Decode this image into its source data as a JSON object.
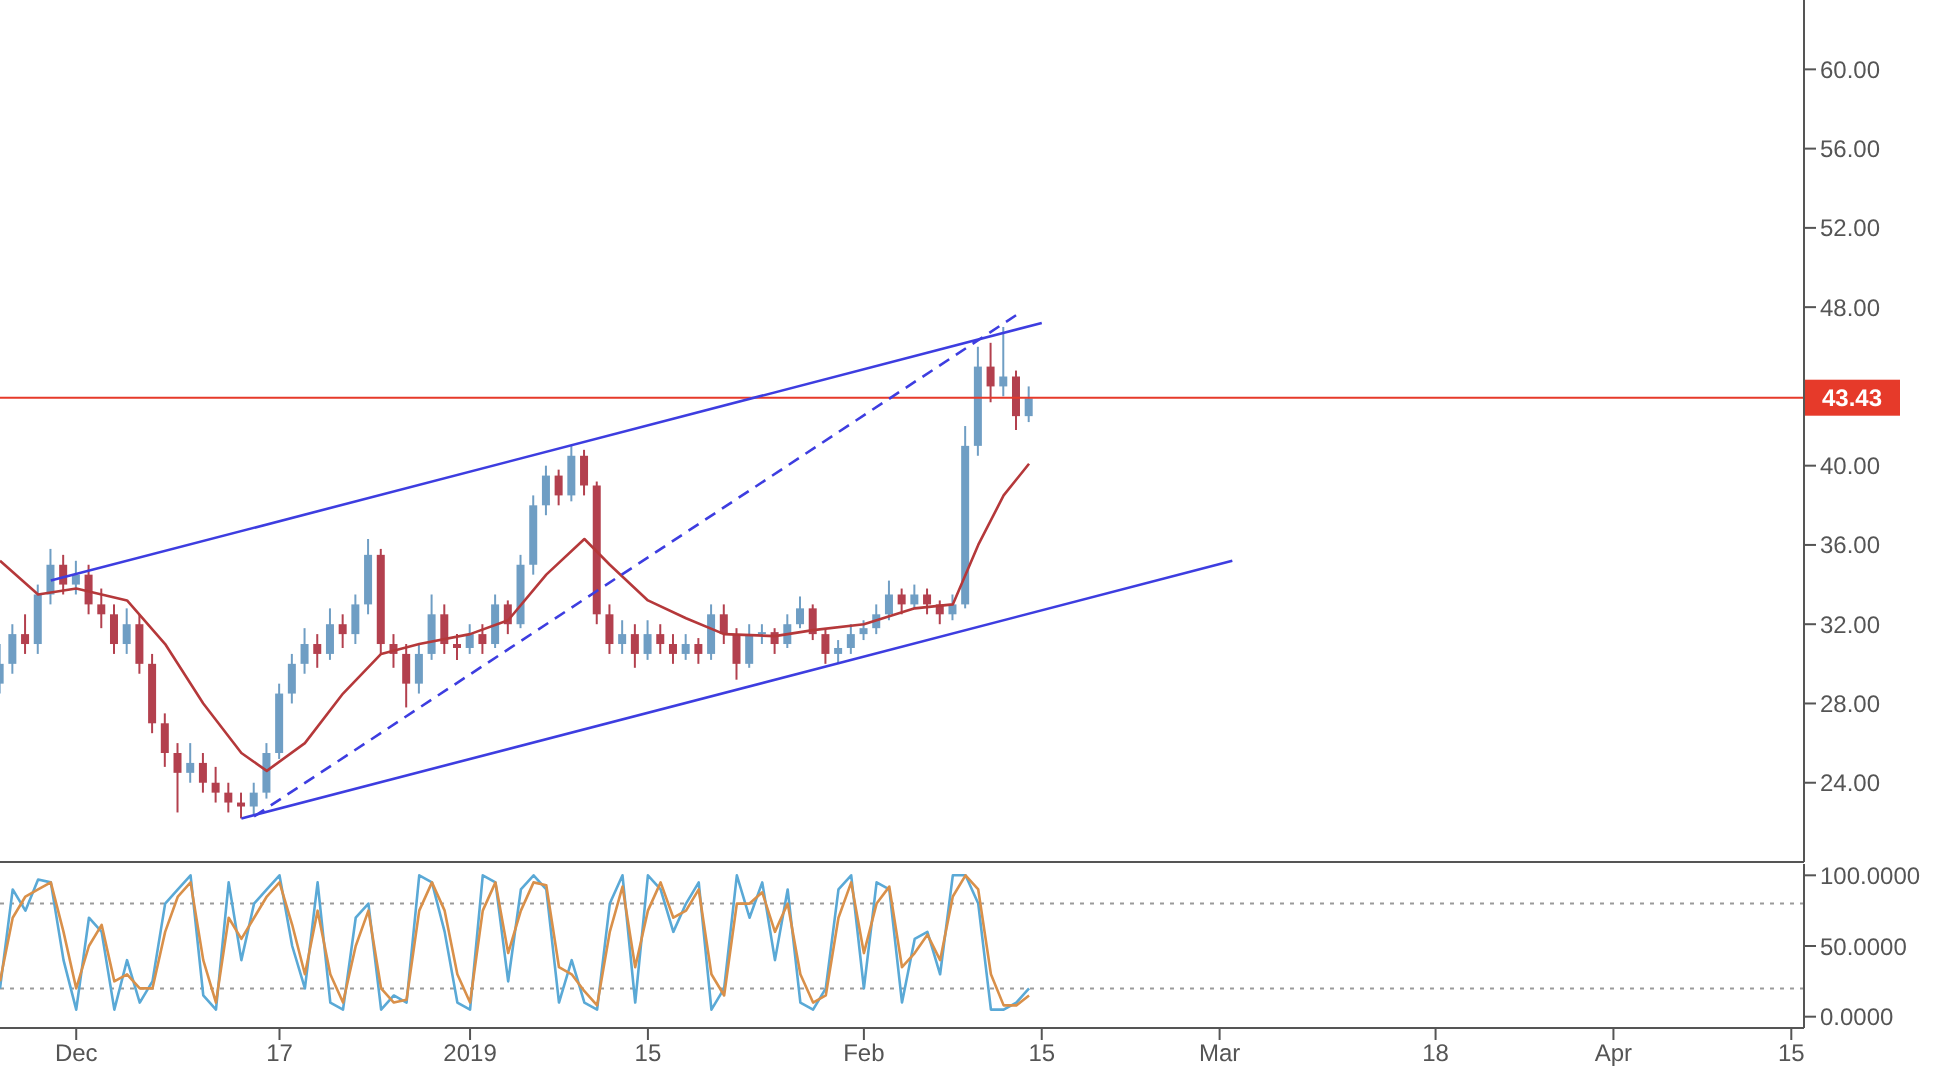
{
  "chart_data": [
    {
      "type": "candlestick",
      "tick_labels": "y",
      "marker": "none",
      "colors": [
        "#6f9ec4",
        "#6f9ec4",
        "#b3404e",
        "#6f9ec4",
        "#6f9ec4",
        "#b3404e",
        "#6f9ec4",
        "#b3404e",
        "#b3404e",
        "#b3404e",
        "#6f9ec4",
        "#b3404e",
        "#b3404e",
        "#b3404e",
        "#b3404e",
        "#6f9ec4",
        "#b3404e",
        "#b3404e",
        "#b3404e",
        "#b3404e",
        "#6f9ec4",
        "#6f9ec4",
        "#6f9ec4",
        "#6f9ec4",
        "#6f9ec4",
        "#b3404e",
        "#6f9ec4",
        "#b3404e",
        "#6f9ec4",
        "#6f9ec4",
        "#b3404e",
        "#b3404e",
        "#b3404e",
        "#6f9ec4",
        "#6f9ec4",
        "#b3404e",
        "#b3404e",
        "#6f9ec4",
        "#b3404e",
        "#6f9ec4",
        "#b3404e",
        "#6f9ec4",
        "#6f9ec4",
        "#6f9ec4",
        "#b3404e",
        "#6f9ec4",
        "#b3404e",
        "#b3404e",
        "#b3404e",
        "#6f9ec4",
        "#b3404e",
        "#6f9ec4",
        "#b3404e",
        "#b3404e",
        "#6f9ec4",
        "#b3404e",
        "#6f9ec4",
        "#b3404e",
        "#b3404e",
        "#6f9ec4",
        "#6f9ec4",
        "#b3404e",
        "#6f9ec4",
        "#6f9ec4",
        "#b3404e",
        "#b3404e",
        "#6f9ec4",
        "#6f9ec4",
        "#6f9ec4",
        "#6f9ec4",
        "#6f9ec4",
        "#b3404e",
        "#6f9ec4",
        "#b3404e",
        "#b3404e",
        "#6f9ec4",
        "#6f9ec4",
        "#6f9ec4",
        "#b3404e",
        "#6f9ec4",
        "#b3404e",
        "#6f9ec4"
      ],
      "x": [
        "2018-11-25",
        "2018-11-26",
        "2018-11-27",
        "2018-11-28",
        "2018-11-29",
        "2018-11-30",
        "2018-12-01",
        "2018-12-02",
        "2018-12-03",
        "2018-12-04",
        "2018-12-05",
        "2018-12-06",
        "2018-12-07",
        "2018-12-08",
        "2018-12-09",
        "2018-12-10",
        "2018-12-11",
        "2018-12-12",
        "2018-12-13",
        "2018-12-14",
        "2018-12-15",
        "2018-12-16",
        "2018-12-17",
        "2018-12-18",
        "2018-12-19",
        "2018-12-20",
        "2018-12-21",
        "2018-12-22",
        "2018-12-23",
        "2018-12-24",
        "2018-12-25",
        "2018-12-26",
        "2018-12-27",
        "2018-12-28",
        "2018-12-29",
        "2018-12-30",
        "2018-12-31",
        "2019-01-01",
        "2019-01-02",
        "2019-01-03",
        "2019-01-04",
        "2019-01-05",
        "2019-01-06",
        "2019-01-07",
        "2019-01-08",
        "2019-01-09",
        "2019-01-10",
        "2019-01-11",
        "2019-01-12",
        "2019-01-13",
        "2019-01-14",
        "2019-01-15",
        "2019-01-16",
        "2019-01-17",
        "2019-01-18",
        "2019-01-19",
        "2019-01-20",
        "2019-01-21",
        "2019-01-22",
        "2019-01-23",
        "2019-01-24",
        "2019-01-25",
        "2019-01-26",
        "2019-01-27",
        "2019-01-28",
        "2019-01-29",
        "2019-01-30",
        "2019-01-31",
        "2019-02-01",
        "2019-02-02",
        "2019-02-03",
        "2019-02-04",
        "2019-02-05",
        "2019-02-06",
        "2019-02-07",
        "2019-02-08",
        "2019-02-09",
        "2019-02-10",
        "2019-02-11",
        "2019-02-12",
        "2019-02-13",
        "2019-02-14"
      ],
      "ohlc": [
        [
          29,
          31,
          28.5,
          30
        ],
        [
          30,
          32,
          29.5,
          31.5
        ],
        [
          31.5,
          32.5,
          30.5,
          31
        ],
        [
          31,
          34,
          30.5,
          33.5
        ],
        [
          33.5,
          35.8,
          33,
          35
        ],
        [
          35,
          35.5,
          33.5,
          34
        ],
        [
          34,
          35.2,
          33.5,
          34.5
        ],
        [
          34.5,
          35,
          32.5,
          33
        ],
        [
          33,
          33.8,
          31.8,
          32.5
        ],
        [
          32.5,
          33,
          30.5,
          31
        ],
        [
          31,
          32.8,
          30.5,
          32
        ],
        [
          32,
          32.5,
          29.5,
          30
        ],
        [
          30,
          30.5,
          26.5,
          27
        ],
        [
          27,
          27.5,
          24.8,
          25.5
        ],
        [
          25.5,
          26,
          22.5,
          24.5
        ],
        [
          24.5,
          26,
          24,
          25
        ],
        [
          25,
          25.5,
          23.5,
          24
        ],
        [
          24,
          24.8,
          23,
          23.5
        ],
        [
          23.5,
          24,
          22.5,
          23
        ],
        [
          23,
          23.5,
          22.2,
          22.8
        ],
        [
          22.8,
          24,
          22.4,
          23.5
        ],
        [
          23.5,
          26,
          23.2,
          25.5
        ],
        [
          25.5,
          29,
          25.2,
          28.5
        ],
        [
          28.5,
          30.5,
          28,
          30
        ],
        [
          30,
          31.8,
          29.5,
          31
        ],
        [
          31,
          31.5,
          29.8,
          30.5
        ],
        [
          30.5,
          32.8,
          30.2,
          32
        ],
        [
          32,
          32.5,
          30.8,
          31.5
        ],
        [
          31.5,
          33.5,
          31,
          33
        ],
        [
          33,
          36.3,
          32.5,
          35.5
        ],
        [
          35.5,
          35.8,
          30.5,
          31
        ],
        [
          31,
          31.5,
          29.8,
          30.5
        ],
        [
          30.5,
          31,
          27.8,
          29
        ],
        [
          29,
          31,
          28.5,
          30.5
        ],
        [
          30.5,
          33.5,
          30.2,
          32.5
        ],
        [
          32.5,
          33,
          30.5,
          31
        ],
        [
          31,
          31.5,
          30.2,
          30.8
        ],
        [
          30.8,
          32,
          30.5,
          31.5
        ],
        [
          31.5,
          32,
          30.5,
          31
        ],
        [
          31,
          33.5,
          30.8,
          33
        ],
        [
          33,
          33.2,
          31.5,
          32
        ],
        [
          32,
          35.5,
          31.8,
          35
        ],
        [
          35,
          38.5,
          34.5,
          38
        ],
        [
          38,
          40,
          37.5,
          39.5
        ],
        [
          39.5,
          39.8,
          38,
          38.5
        ],
        [
          38.5,
          41,
          38.2,
          40.5
        ],
        [
          40.5,
          40.8,
          38.5,
          39
        ],
        [
          39,
          39.2,
          32,
          32.5
        ],
        [
          32.5,
          33,
          30.5,
          31
        ],
        [
          31,
          32.2,
          30.5,
          31.5
        ],
        [
          31.5,
          32,
          29.8,
          30.5
        ],
        [
          30.5,
          32.2,
          30.2,
          31.5
        ],
        [
          31.5,
          32,
          30.5,
          31
        ],
        [
          31,
          31.5,
          30,
          30.5
        ],
        [
          30.5,
          31.5,
          30.2,
          31
        ],
        [
          31,
          31.3,
          30,
          30.5
        ],
        [
          30.5,
          33,
          30.2,
          32.5
        ],
        [
          32.5,
          33,
          31,
          31.5
        ],
        [
          31.5,
          31.8,
          29.2,
          30
        ],
        [
          30,
          32,
          29.8,
          31.5
        ],
        [
          31.5,
          32,
          31,
          31.6
        ],
        [
          31.6,
          31.8,
          30.5,
          31
        ],
        [
          31,
          32.5,
          30.8,
          32
        ],
        [
          32,
          33.4,
          31.8,
          32.8
        ],
        [
          32.8,
          33,
          31.2,
          31.5
        ],
        [
          31.5,
          31.8,
          30,
          30.5
        ],
        [
          30.5,
          31.2,
          30,
          30.8
        ],
        [
          30.8,
          32,
          30.5,
          31.5
        ],
        [
          31.5,
          32.2,
          31.2,
          31.8
        ],
        [
          31.8,
          33,
          31.5,
          32.5
        ],
        [
          32.5,
          34.2,
          32.2,
          33.5
        ],
        [
          33.5,
          33.8,
          32.5,
          33
        ],
        [
          33,
          34,
          32.8,
          33.5
        ],
        [
          33.5,
          33.8,
          32.5,
          33
        ],
        [
          33,
          33.2,
          32,
          32.5
        ],
        [
          32.5,
          33.5,
          32.2,
          33
        ],
        [
          33,
          42,
          32.8,
          41
        ],
        [
          41,
          46,
          40.5,
          45
        ],
        [
          45,
          46.2,
          43.2,
          44
        ],
        [
          44,
          47,
          43.5,
          44.5
        ],
        [
          44.5,
          44.8,
          41.8,
          42.5
        ],
        [
          42.5,
          44,
          42.2,
          43.4
        ]
      ],
      "series": [
        {
          "type": "line",
          "color": "#b5383a",
          "x": [
            "2018-11-25",
            "2018-11-28",
            "2018-12-01",
            "2018-12-05",
            "2018-12-08",
            "2018-12-11",
            "2018-12-14",
            "2018-12-16",
            "2018-12-19",
            "2018-12-22",
            "2018-12-25",
            "2018-12-28",
            "2019-01-01",
            "2019-01-04",
            "2019-01-07",
            "2019-01-10",
            "2019-01-12",
            "2019-01-15",
            "2019-01-18",
            "2019-01-21",
            "2019-01-25",
            "2019-01-28",
            "2019-02-01",
            "2019-02-05",
            "2019-02-08",
            "2019-02-10",
            "2019-02-12",
            "2019-02-14"
          ],
          "values": [
            35.2,
            33.5,
            33.8,
            33.2,
            31,
            28,
            25.5,
            24.6,
            26,
            28.5,
            30.5,
            31,
            31.5,
            32.2,
            34.5,
            36.3,
            35,
            33.2,
            32.3,
            31.5,
            31.4,
            31.7,
            32,
            32.8,
            33,
            36,
            38.5,
            40.1
          ]
        },
        {
          "type": "line",
          "color": "#3d3de0",
          "line_style": "solid",
          "x": [
            "2018-11-29",
            "2019-02-15"
          ],
          "values": [
            34.2,
            47.2
          ]
        },
        {
          "type": "line",
          "color": "#3d3de0",
          "line_style": "solid",
          "x": [
            "2018-12-14",
            "2019-03-02"
          ],
          "values": [
            22.2,
            35.2
          ]
        },
        {
          "type": "line",
          "color": "#3d3de0",
          "line_style": "dashed",
          "x": [
            "2018-12-15",
            "2019-02-13"
          ],
          "values": [
            22.3,
            47.6
          ]
        }
      ],
      "xlim": [
        "2018-11-25",
        "2019-04-16"
      ],
      "ylim": [
        20,
        63.5
      ],
      "yticks": [
        {
          "value": 24,
          "label": "24.00"
        },
        {
          "value": 28,
          "label": "28.00"
        },
        {
          "value": 32,
          "label": "32.00"
        },
        {
          "value": 36,
          "label": "36.00"
        },
        {
          "value": 40,
          "label": "40.00"
        },
        {
          "value": 48,
          "label": "48.00"
        },
        {
          "value": 52,
          "label": "52.00"
        },
        {
          "value": 56,
          "label": "56.00"
        },
        {
          "value": 60,
          "label": "60.00"
        }
      ],
      "ref_lines": [
        {
          "axis": "y",
          "value": 43.43,
          "label": "43.43",
          "color": "#e63a2a"
        }
      ]
    },
    {
      "type": "line",
      "marker": "none",
      "x": [
        "2018-11-25",
        "2018-11-26",
        "2018-11-27",
        "2018-11-28",
        "2018-11-29",
        "2018-11-30",
        "2018-12-01",
        "2018-12-02",
        "2018-12-03",
        "2018-12-04",
        "2018-12-05",
        "2018-12-06",
        "2018-12-07",
        "2018-12-08",
        "2018-12-09",
        "2018-12-10",
        "2018-12-11",
        "2018-12-12",
        "2018-12-13",
        "2018-12-14",
        "2018-12-15",
        "2018-12-16",
        "2018-12-17",
        "2018-12-18",
        "2018-12-19",
        "2018-12-20",
        "2018-12-21",
        "2018-12-22",
        "2018-12-23",
        "2018-12-24",
        "2018-12-25",
        "2018-12-26",
        "2018-12-27",
        "2018-12-28",
        "2018-12-29",
        "2018-12-30",
        "2018-12-31",
        "2019-01-01",
        "2019-01-02",
        "2019-01-03",
        "2019-01-04",
        "2019-01-05",
        "2019-01-06",
        "2019-01-07",
        "2019-01-08",
        "2019-01-09",
        "2019-01-10",
        "2019-01-11",
        "2019-01-12",
        "2019-01-13",
        "2019-01-14",
        "2019-01-15",
        "2019-01-16",
        "2019-01-17",
        "2019-01-18",
        "2019-01-19",
        "2019-01-20",
        "2019-01-21",
        "2019-01-22",
        "2019-01-23",
        "2019-01-24",
        "2019-01-25",
        "2019-01-26",
        "2019-01-27",
        "2019-01-28",
        "2019-01-29",
        "2019-01-30",
        "2019-01-31",
        "2019-02-01",
        "2019-02-02",
        "2019-02-03",
        "2019-02-04",
        "2019-02-05",
        "2019-02-06",
        "2019-02-07",
        "2019-02-08",
        "2019-02-09",
        "2019-02-10",
        "2019-02-11",
        "2019-02-12",
        "2019-02-13",
        "2019-02-14"
      ],
      "series": [
        {
          "color": "#5aa9d6",
          "values": [
            20,
            90,
            75,
            97,
            95,
            40,
            5,
            70,
            60,
            5,
            40,
            10,
            25,
            80,
            90,
            100,
            15,
            5,
            95,
            40,
            80,
            90,
            100,
            50,
            20,
            95,
            10,
            5,
            70,
            80,
            5,
            15,
            10,
            100,
            95,
            60,
            10,
            5,
            100,
            95,
            25,
            90,
            100,
            90,
            10,
            40,
            10,
            5,
            80,
            100,
            10,
            100,
            90,
            60,
            80,
            95,
            5,
            20,
            100,
            70,
            95,
            40,
            90,
            10,
            5,
            20,
            90,
            100,
            20,
            95,
            90,
            10,
            55,
            60,
            30,
            100,
            100,
            80,
            5,
            5,
            10,
            20
          ]
        },
        {
          "color": "#d9904a",
          "values": [
            25,
            70,
            85,
            90,
            95,
            60,
            20,
            50,
            65,
            25,
            30,
            20,
            20,
            60,
            85,
            95,
            40,
            10,
            70,
            55,
            70,
            85,
            95,
            65,
            30,
            75,
            30,
            10,
            50,
            75,
            20,
            10,
            12,
            75,
            95,
            75,
            30,
            10,
            75,
            95,
            45,
            75,
            95,
            93,
            35,
            30,
            18,
            8,
            60,
            92,
            35,
            75,
            95,
            70,
            75,
            90,
            30,
            15,
            80,
            80,
            88,
            60,
            80,
            30,
            10,
            15,
            70,
            95,
            45,
            80,
            92,
            35,
            45,
            58,
            40,
            85,
            100,
            90,
            30,
            8,
            8,
            15
          ]
        }
      ],
      "xlim": [
        "2018-11-25",
        "2019-04-16"
      ],
      "xticks": [
        {
          "value": "2018-12-01",
          "label": "Dec"
        },
        {
          "value": "2018-12-17",
          "label": "17"
        },
        {
          "value": "2019-01-01",
          "label": "2019"
        },
        {
          "value": "2019-01-15",
          "label": "15"
        },
        {
          "value": "2019-02-01",
          "label": "Feb"
        },
        {
          "value": "2019-02-15",
          "label": "15"
        },
        {
          "value": "2019-03-01",
          "label": "Mar"
        },
        {
          "value": "2019-03-18",
          "label": "18"
        },
        {
          "value": "2019-04-01",
          "label": "Apr"
        },
        {
          "value": "2019-04-15",
          "label": "15"
        }
      ],
      "ylim": [
        -8,
        108
      ],
      "yticks": [
        {
          "value": 0,
          "label": "0.0000"
        },
        {
          "value": 50,
          "label": "50.0000"
        },
        {
          "value": 100,
          "label": "100.0000"
        }
      ],
      "ref_lines": [
        {
          "axis": "y",
          "value": 80,
          "color": "#9a9a9a",
          "line_style": "dotted"
        },
        {
          "axis": "y",
          "value": 20,
          "color": "#9a9a9a",
          "line_style": "dotted"
        }
      ]
    }
  ]
}
